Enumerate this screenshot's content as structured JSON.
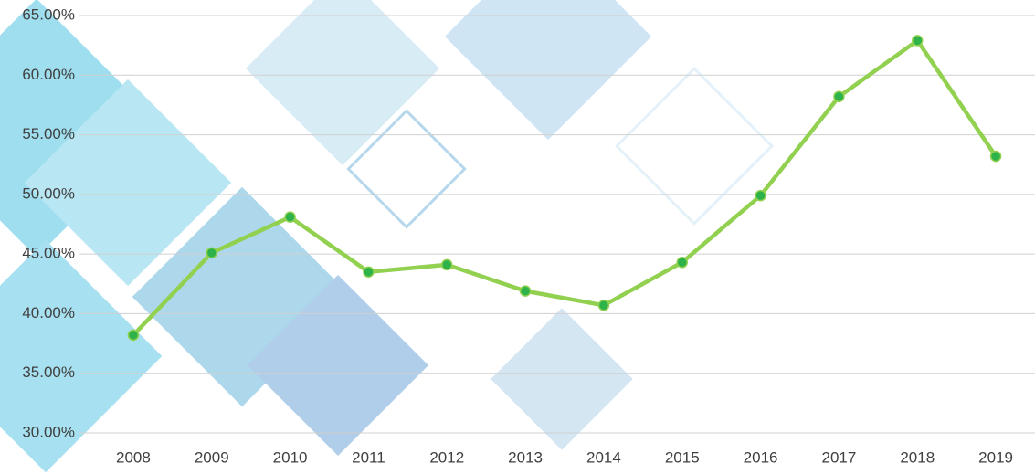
{
  "chart_data": {
    "type": "line",
    "categories": [
      "2008",
      "2009",
      "2010",
      "2011",
      "2012",
      "2013",
      "2014",
      "2015",
      "2016",
      "2017",
      "2018",
      "2019"
    ],
    "series": [
      {
        "color": "#92d050",
        "values": [
          38.2,
          45.1,
          48.1,
          43.5,
          44.1,
          41.9,
          40.7,
          44.3,
          49.9,
          58.2,
          62.9,
          53.2
        ]
      }
    ],
    "ylim": [
      30,
      65
    ],
    "yticks": [
      {
        "value": 30,
        "label": "30.00%"
      },
      {
        "value": 35,
        "label": "35.00%"
      },
      {
        "value": 40,
        "label": "40.00%"
      },
      {
        "value": 45,
        "label": "45.00%"
      },
      {
        "value": 50,
        "label": "50.00%"
      },
      {
        "value": 55,
        "label": "55.00%"
      },
      {
        "value": 60,
        "label": "60.00%"
      },
      {
        "value": 65,
        "label": "65.00%"
      }
    ],
    "grid": true,
    "marker_color": "#2db34a"
  }
}
